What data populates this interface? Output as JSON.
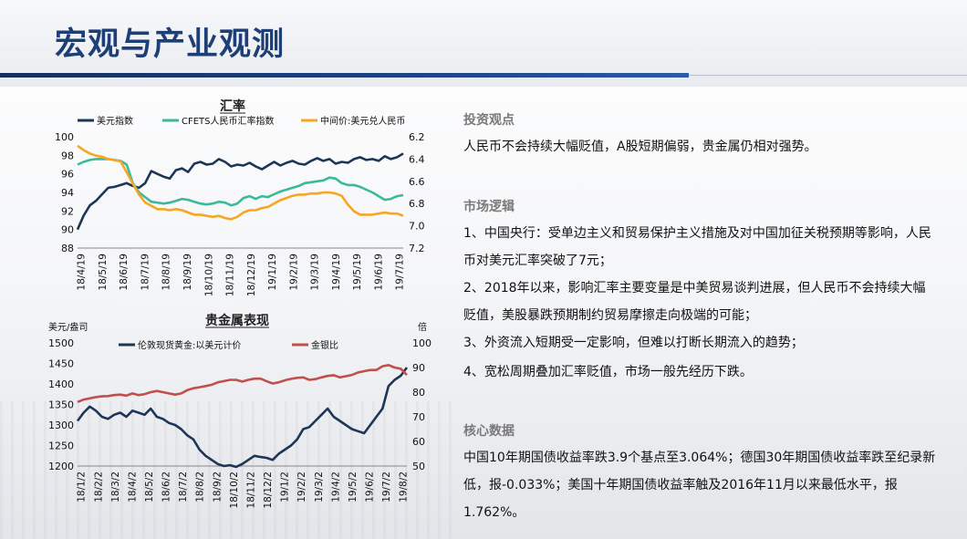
{
  "page": {
    "title": "宏观与产业观测"
  },
  "chart_data": [
    {
      "type": "line",
      "title": "汇率",
      "x_tick_labels": [
        "18/4/19",
        "18/5/19",
        "18/6/19",
        "18/7/19",
        "18/8/19",
        "18/9/19",
        "18/10/19",
        "18/11/19",
        "18/12/19",
        "19/1/19",
        "19/2/19",
        "19/3/19",
        "19/4/19",
        "19/5/19",
        "19/6/19",
        "19/7/19"
      ],
      "ylim_left": [
        88,
        100
      ],
      "yticks_left": [
        "100",
        "98",
        "96",
        "94",
        "92",
        "90",
        "88"
      ],
      "ylim_right": [
        7.2,
        6.2
      ],
      "yticks_right": [
        "6.2",
        "6.4",
        "6.6",
        "6.8",
        "7.0",
        "7.2"
      ],
      "series": [
        {
          "name": "美元指数",
          "axis": "left",
          "color": "#1d3557",
          "values": [
            90.0,
            91.5,
            92.6,
            93.1,
            93.8,
            94.5,
            94.6,
            94.8,
            95.0,
            94.7,
            94.5,
            95.0,
            96.3,
            96.0,
            95.7,
            95.5,
            96.4,
            96.6,
            96.2,
            97.1,
            97.3,
            97.0,
            97.1,
            97.6,
            97.3,
            96.8,
            97.0,
            96.9,
            97.2,
            96.8,
            96.5,
            96.9,
            97.3,
            96.9,
            97.2,
            97.4,
            97.1,
            97.0,
            97.4,
            97.7,
            97.4,
            97.6,
            97.1,
            97.3,
            97.2,
            97.6,
            97.8,
            97.5,
            97.6,
            97.4,
            97.9,
            97.6,
            97.8,
            98.2
          ]
        },
        {
          "name": "CFETS人民币汇率指数",
          "axis": "left",
          "color": "#3cb89a",
          "values": [
            97.0,
            97.3,
            97.5,
            97.6,
            97.6,
            97.6,
            97.5,
            97.4,
            97.0,
            95.0,
            94.0,
            93.5,
            93.0,
            92.9,
            92.8,
            92.9,
            93.1,
            93.3,
            93.2,
            93.0,
            92.8,
            92.7,
            92.8,
            93.0,
            92.9,
            92.6,
            92.8,
            93.4,
            93.6,
            93.3,
            93.6,
            93.5,
            93.8,
            94.1,
            94.3,
            94.5,
            94.7,
            95.0,
            95.1,
            95.2,
            95.3,
            95.6,
            95.5,
            95.0,
            94.8,
            94.8,
            94.6,
            94.3,
            94.0,
            93.6,
            93.2,
            93.3,
            93.6,
            93.7
          ]
        },
        {
          "name": "中间价:美元兑人民币",
          "axis": "right",
          "color": "#f5a623",
          "values": [
            6.28,
            6.32,
            6.35,
            6.37,
            6.38,
            6.4,
            6.41,
            6.42,
            6.52,
            6.62,
            6.72,
            6.79,
            6.82,
            6.85,
            6.85,
            6.86,
            6.85,
            6.86,
            6.88,
            6.9,
            6.9,
            6.91,
            6.92,
            6.91,
            6.93,
            6.94,
            6.92,
            6.88,
            6.86,
            6.86,
            6.84,
            6.83,
            6.8,
            6.77,
            6.75,
            6.73,
            6.72,
            6.72,
            6.71,
            6.71,
            6.7,
            6.7,
            6.71,
            6.73,
            6.81,
            6.87,
            6.9,
            6.9,
            6.9,
            6.89,
            6.88,
            6.89,
            6.89,
            6.91
          ]
        }
      ]
    },
    {
      "type": "line",
      "title": "贵金属表现",
      "ylabel_left": "美元/盎司",
      "ylabel_right": "倍",
      "x_tick_labels": [
        "18/1/2",
        "18/2/2",
        "18/3/2",
        "18/4/2",
        "18/5/2",
        "18/6/2",
        "18/7/2",
        "18/8/2",
        "18/9/2",
        "18/10/2",
        "18/11/2",
        "18/12/2",
        "19/1/2",
        "19/2/2",
        "19/3/2",
        "19/4/2",
        "19/5/2",
        "19/6/2",
        "19/7/2",
        "19/8/2"
      ],
      "ylim_left": [
        1200,
        1500
      ],
      "yticks_left": [
        "1500",
        "1450",
        "1400",
        "1350",
        "1300",
        "1250",
        "1200"
      ],
      "ylim_right": [
        50,
        100
      ],
      "yticks_right": [
        "100",
        "90",
        "80",
        "70",
        "60",
        "50"
      ],
      "series": [
        {
          "name": "伦敦现货黄金:以美元计价",
          "axis": "left",
          "color": "#1d3557",
          "values": [
            1310,
            1330,
            1345,
            1335,
            1320,
            1315,
            1325,
            1330,
            1320,
            1335,
            1330,
            1325,
            1340,
            1320,
            1315,
            1305,
            1300,
            1290,
            1275,
            1265,
            1240,
            1225,
            1215,
            1205,
            1200,
            1202,
            1198,
            1205,
            1215,
            1225,
            1222,
            1220,
            1215,
            1230,
            1240,
            1250,
            1265,
            1290,
            1295,
            1310,
            1325,
            1340,
            1320,
            1310,
            1300,
            1290,
            1285,
            1280,
            1300,
            1320,
            1340,
            1395,
            1410,
            1420,
            1440
          ]
        },
        {
          "name": "金银比",
          "axis": "right",
          "color": "#c0504d",
          "values": [
            76.0,
            77.0,
            77.5,
            78.0,
            78.3,
            78.4,
            78.8,
            79.0,
            78.6,
            79.5,
            78.8,
            79.2,
            80.0,
            80.5,
            80.0,
            79.5,
            79.0,
            79.5,
            80.8,
            81.6,
            82.0,
            82.5,
            83.0,
            84.0,
            84.5,
            85.0,
            85.0,
            84.3,
            85.0,
            85.5,
            85.5,
            84.5,
            83.5,
            84.0,
            84.8,
            85.4,
            85.8,
            86.0,
            85.0,
            85.3,
            86.0,
            86.6,
            86.9,
            86.0,
            86.5,
            87.0,
            88.0,
            88.5,
            89.0,
            89.0,
            90.5,
            91.0,
            90.0,
            89.5,
            87.0
          ]
        }
      ]
    }
  ],
  "right": {
    "s1_title": "投资观点",
    "s1_text": "人民币不会持续大幅贬值，A股短期偏弱，贵金属仍相对强势。",
    "s2_title": "市场逻辑",
    "s2_p1": "1、中国央行：受单边主义和贸易保护主义措施及对中国加征关税预期等影响，人民币对美元汇率突破了7元；",
    "s2_p2": "2、2018年以来，影响汇率主要变量是中美贸易谈判进展，但人民币不会持续大幅贬值，美股暴跌预期制约贸易摩擦走向极端的可能；",
    "s2_p3": "3、外资流入短期受一定影响，但难以打断长期流入的趋势；",
    "s2_p4": "4、宽松周期叠加汇率贬值，市场一般先经历下跌。",
    "s3_title": "核心数据",
    "s3_text": "中国10年期国债收益率跌3.9个基点至3.064%；德国30年期国债收益率跌至纪录新低，报-0.033%；美国十年期国债收益率触及2016年11月以来最低水平，报1.762%。"
  }
}
